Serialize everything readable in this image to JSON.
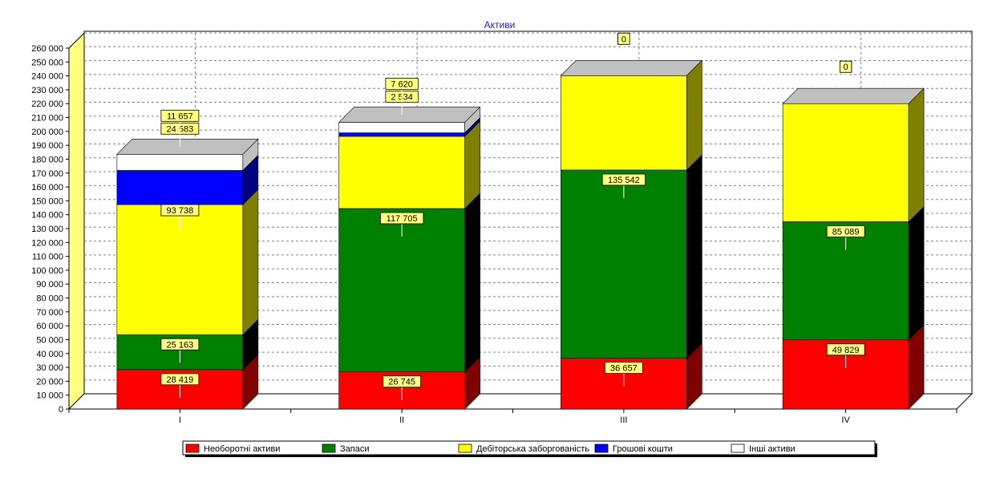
{
  "chart_data": {
    "type": "bar",
    "stacked": true,
    "three_d": true,
    "title": "Активи",
    "xlabel": "",
    "ylabel": "",
    "ylim": [
      0,
      260000
    ],
    "ytick_step": 10000,
    "ytick_labels": [
      "0",
      "10 000",
      "20 000",
      "30 000",
      "40 000",
      "50 000",
      "60 000",
      "70 000",
      "80 000",
      "90 000",
      "100 000",
      "110 000",
      "120 000",
      "130 000",
      "140 000",
      "150 000",
      "160 000",
      "170 000",
      "180 000",
      "190 000",
      "200 000",
      "210 000",
      "220 000",
      "230 000",
      "240 000",
      "250 000",
      "260 000"
    ],
    "grid": true,
    "legend_position": "bottom",
    "categories": [
      "I",
      "II",
      "III",
      "IV"
    ],
    "series": [
      {
        "name": "Необоротні активи",
        "color": "#ff0000",
        "side_color": "#800000",
        "values": [
          28419,
          26745,
          36657,
          49829
        ]
      },
      {
        "name": "Запаси",
        "color": "#008000",
        "side_color": "#000000",
        "values": [
          25163,
          117705,
          135542,
          85089
        ]
      },
      {
        "name": "Дебіторська заборгованість",
        "color": "#ffff00",
        "side_color": "#808000",
        "values": [
          93738,
          52000,
          68000,
          85089
        ]
      },
      {
        "name": "Грошові кошти",
        "color": "#0000ff",
        "side_color": "#000080",
        "values": [
          24583,
          2534,
          0,
          0
        ]
      },
      {
        "name": "Інші активи",
        "color": "#ffffff",
        "side_color": "#c0c0c0",
        "values": [
          11657,
          7620,
          0,
          0
        ]
      }
    ],
    "data_labels": [
      [
        {
          "text": "28 419",
          "series": 0
        },
        {
          "text": "25 163",
          "series": 1
        },
        {
          "text": "93 738",
          "series": 2
        },
        {
          "text": "24 583",
          "series": 3
        },
        {
          "text": "11 657",
          "series": 4
        }
      ],
      [
        {
          "text": "26 745",
          "series": 0
        },
        {
          "text": "117 705",
          "series": 1
        },
        {
          "text": "2 534",
          "series": 3
        },
        {
          "text": "7 620",
          "series": 4
        }
      ],
      [
        {
          "text": "36 657",
          "series": 0
        },
        {
          "text": "135 542",
          "series": 1
        },
        {
          "text": "0",
          "series": 3
        },
        {
          "text": "0",
          "series": 4
        }
      ],
      [
        {
          "text": "49 829",
          "series": 0
        },
        {
          "text": "85 089",
          "series": 1
        },
        {
          "text": "0",
          "series": 3
        },
        {
          "text": "0",
          "series": 4
        }
      ]
    ]
  }
}
